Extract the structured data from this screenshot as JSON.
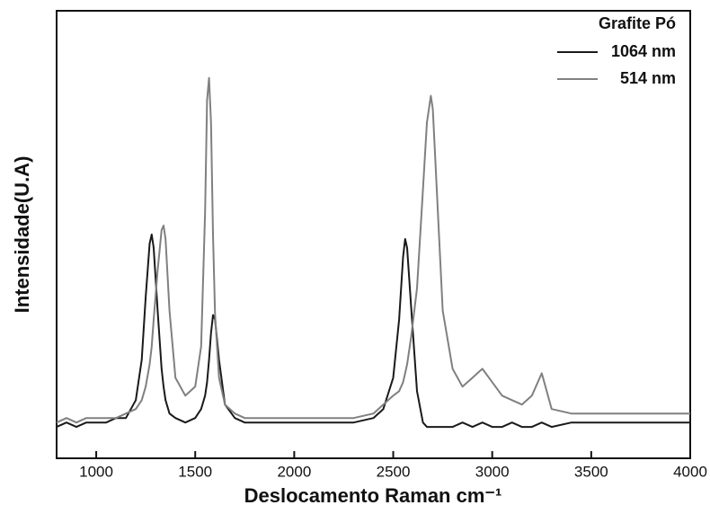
{
  "chart_data": {
    "type": "line",
    "xlabel": "Deslocamento Raman cm⁻¹",
    "ylabel": "Intensidade(U.A)",
    "legend_title": "Grafite Pó",
    "legend": "upper right",
    "xlim": [
      800,
      4000
    ],
    "xticks": [
      1000,
      1500,
      2000,
      2500,
      3000,
      3500,
      4000
    ],
    "ylim": [
      0,
      100
    ],
    "x": [
      800,
      850,
      900,
      950,
      1000,
      1050,
      1100,
      1150,
      1200,
      1230,
      1250,
      1270,
      1280,
      1290,
      1310,
      1330,
      1340,
      1350,
      1370,
      1400,
      1450,
      1500,
      1530,
      1550,
      1560,
      1570,
      1580,
      1590,
      1600,
      1620,
      1650,
      1700,
      1750,
      1800,
      1900,
      2000,
      2100,
      2200,
      2300,
      2400,
      2450,
      2500,
      2530,
      2550,
      2560,
      2570,
      2590,
      2620,
      2650,
      2670,
      2690,
      2700,
      2720,
      2750,
      2800,
      2850,
      2900,
      2950,
      3000,
      3050,
      3100,
      3150,
      3200,
      3250,
      3300,
      3400,
      3500,
      3600,
      3700,
      3800,
      3900,
      4000
    ],
    "series": [
      {
        "name": "1064 nm",
        "color": "#1a1a1a",
        "values": [
          7,
          8,
          7,
          8,
          8,
          8,
          9,
          9,
          13,
          22,
          36,
          48,
          50,
          47,
          33,
          20,
          16,
          13,
          10,
          9,
          8,
          9,
          11,
          14,
          17,
          22,
          28,
          32,
          31,
          22,
          12,
          9,
          8,
          8,
          8,
          8,
          8,
          8,
          8,
          9,
          11,
          18,
          31,
          45,
          49,
          47,
          34,
          15,
          8,
          7,
          7,
          7,
          7,
          7,
          7,
          8,
          7,
          8,
          7,
          7,
          8,
          7,
          7,
          8,
          7,
          8,
          8,
          8,
          8,
          8,
          8,
          8
        ]
      },
      {
        "name": "514 nm",
        "color": "#808080",
        "values": [
          8,
          9,
          8,
          9,
          9,
          9,
          9,
          10,
          11,
          13,
          16,
          21,
          25,
          31,
          42,
          51,
          52,
          49,
          33,
          18,
          14,
          16,
          25,
          55,
          80,
          85,
          75,
          50,
          32,
          18,
          12,
          10,
          9,
          9,
          9,
          9,
          9,
          9,
          9,
          10,
          12,
          14,
          15,
          17,
          19,
          21,
          27,
          38,
          60,
          75,
          81,
          78,
          60,
          33,
          20,
          16,
          18,
          20,
          17,
          14,
          13,
          12,
          14,
          19,
          11,
          10,
          10,
          10,
          10,
          10,
          10,
          10
        ]
      }
    ]
  }
}
